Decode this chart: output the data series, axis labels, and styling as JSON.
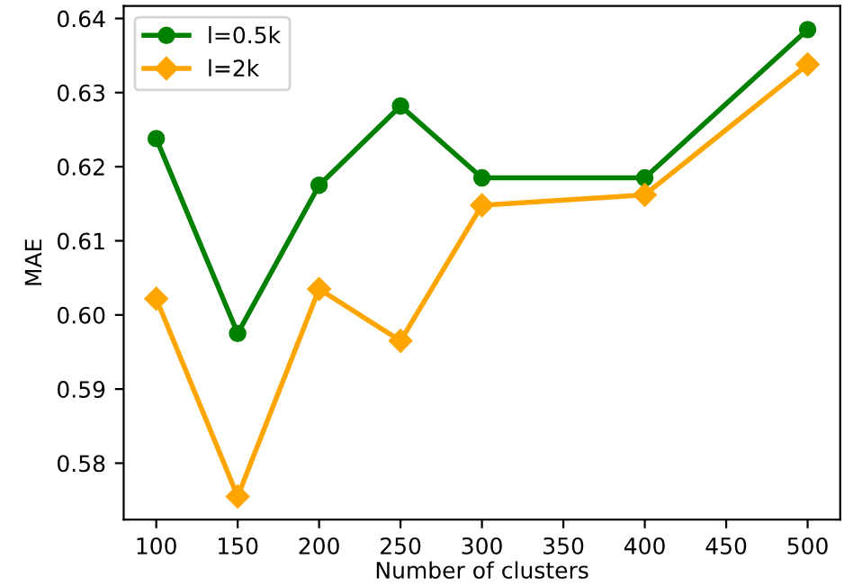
{
  "chart_data": {
    "type": "line",
    "xlabel": "Number of clusters",
    "ylabel": "MAE",
    "x": [
      100,
      150,
      200,
      250,
      300,
      400,
      500
    ],
    "series": [
      {
        "name": "l=0.5k",
        "color": "#008000",
        "marker": "circle",
        "values": [
          0.6238,
          0.5975,
          0.6175,
          0.6282,
          0.6185,
          0.6185,
          0.6385
        ]
      },
      {
        "name": "l=2k",
        "color": "#ffa500",
        "marker": "diamond",
        "values": [
          0.6022,
          0.5755,
          0.6035,
          0.5965,
          0.6148,
          0.6162,
          0.6338
        ]
      }
    ],
    "xlim": [
      80,
      520
    ],
    "xticks": [
      100,
      150,
      200,
      250,
      300,
      350,
      400,
      450,
      500
    ],
    "ylim": [
      0.5724,
      0.6417
    ],
    "yticks": [
      0.58,
      0.59,
      {
        "value": 0.6,
        "label": "0.60"
      },
      0.61,
      0.62,
      0.63,
      0.64
    ],
    "grid": false,
    "legend": "top left"
  }
}
